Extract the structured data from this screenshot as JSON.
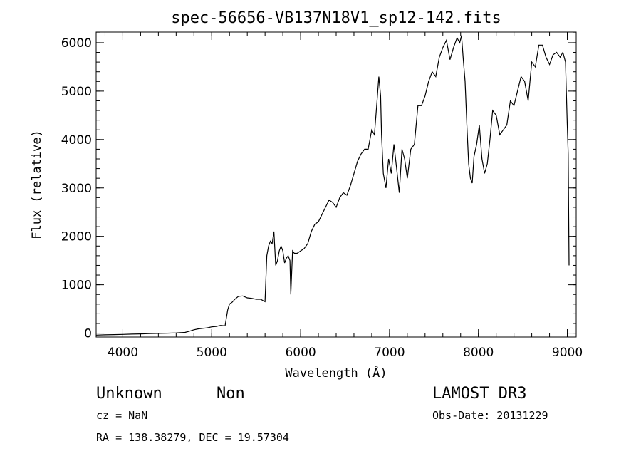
{
  "chart_data": {
    "type": "line",
    "title": "spec-56656-VB137N18V1_sp12-142.fits",
    "xlabel": "Wavelength (Å)",
    "ylabel": "Flux (relative)",
    "xlim": [
      3700,
      9100
    ],
    "ylim": [
      -80,
      6220
    ],
    "xticks": [
      4000,
      5000,
      6000,
      7000,
      8000,
      9000
    ],
    "yticks": [
      0,
      1000,
      2000,
      3000,
      4000,
      5000,
      6000
    ],
    "x_minor_step": 200,
    "y_minor_step": 200,
    "series": [
      {
        "name": "spectrum",
        "color": "#000000",
        "x": [
          3700,
          3800,
          3900,
          4000,
          4100,
          4200,
          4300,
          4400,
          4500,
          4600,
          4700,
          4750,
          4800,
          4850,
          4900,
          4950,
          5000,
          5050,
          5100,
          5150,
          5180,
          5200,
          5230,
          5260,
          5300,
          5350,
          5400,
          5450,
          5500,
          5550,
          5600,
          5620,
          5640,
          5660,
          5680,
          5700,
          5720,
          5740,
          5760,
          5780,
          5800,
          5820,
          5840,
          5860,
          5880,
          5890,
          5910,
          5930,
          5960,
          6000,
          6040,
          6080,
          6120,
          6160,
          6200,
          6240,
          6280,
          6320,
          6360,
          6400,
          6440,
          6480,
          6520,
          6560,
          6600,
          6640,
          6680,
          6720,
          6760,
          6800,
          6830,
          6860,
          6880,
          6900,
          6910,
          6930,
          6960,
          6990,
          7020,
          7050,
          7080,
          7110,
          7140,
          7170,
          7200,
          7240,
          7280,
          7320,
          7360,
          7400,
          7440,
          7480,
          7520,
          7560,
          7600,
          7640,
          7680,
          7720,
          7760,
          7790,
          7810,
          7830,
          7850,
          7870,
          7890,
          7910,
          7930,
          7950,
          7980,
          8010,
          8040,
          8070,
          8100,
          8130,
          8160,
          8200,
          8240,
          8280,
          8320,
          8360,
          8400,
          8440,
          8480,
          8520,
          8560,
          8600,
          8640,
          8680,
          8720,
          8760,
          8800,
          8840,
          8880,
          8920,
          8950,
          8980,
          9000,
          9010,
          9020
        ],
        "y": [
          -40,
          -35,
          -30,
          -25,
          -20,
          -15,
          -10,
          -5,
          0,
          5,
          15,
          40,
          70,
          90,
          100,
          110,
          130,
          140,
          160,
          150,
          480,
          600,
          640,
          700,
          760,
          770,
          730,
          720,
          700,
          700,
          650,
          1600,
          1800,
          1900,
          1850,
          2100,
          1400,
          1500,
          1700,
          1800,
          1700,
          1450,
          1550,
          1600,
          1500,
          800,
          1700,
          1650,
          1650,
          1700,
          1750,
          1850,
          2100,
          2250,
          2300,
          2450,
          2600,
          2750,
          2700,
          2600,
          2800,
          2900,
          2850,
          3050,
          3300,
          3550,
          3700,
          3800,
          3800,
          4200,
          4100,
          4800,
          5300,
          4900,
          4100,
          3300,
          3000,
          3600,
          3300,
          3900,
          3400,
          2900,
          3800,
          3600,
          3200,
          3800,
          3900,
          4700,
          4700,
          4900,
          5200,
          5400,
          5300,
          5700,
          5900,
          6050,
          5650,
          5900,
          6100,
          6000,
          6150,
          5650,
          5200,
          4300,
          3500,
          3200,
          3100,
          3650,
          3900,
          4300,
          3600,
          3300,
          3500,
          4000,
          4600,
          4500,
          4100,
          4200,
          4300,
          4800,
          4700,
          5000,
          5300,
          5200,
          4800,
          5600,
          5500,
          5950,
          5950,
          5700,
          5550,
          5750,
          5800,
          5700,
          5800,
          5600,
          4300,
          3700,
          1400
        ]
      }
    ]
  },
  "footer": {
    "object_class": "Unknown",
    "subclass": "Non",
    "cz": "cz = NaN",
    "coords": "RA = 138.38279, DEC =  19.57304",
    "survey": "LAMOST DR3",
    "obs_date": "Obs-Date: 20131229"
  }
}
